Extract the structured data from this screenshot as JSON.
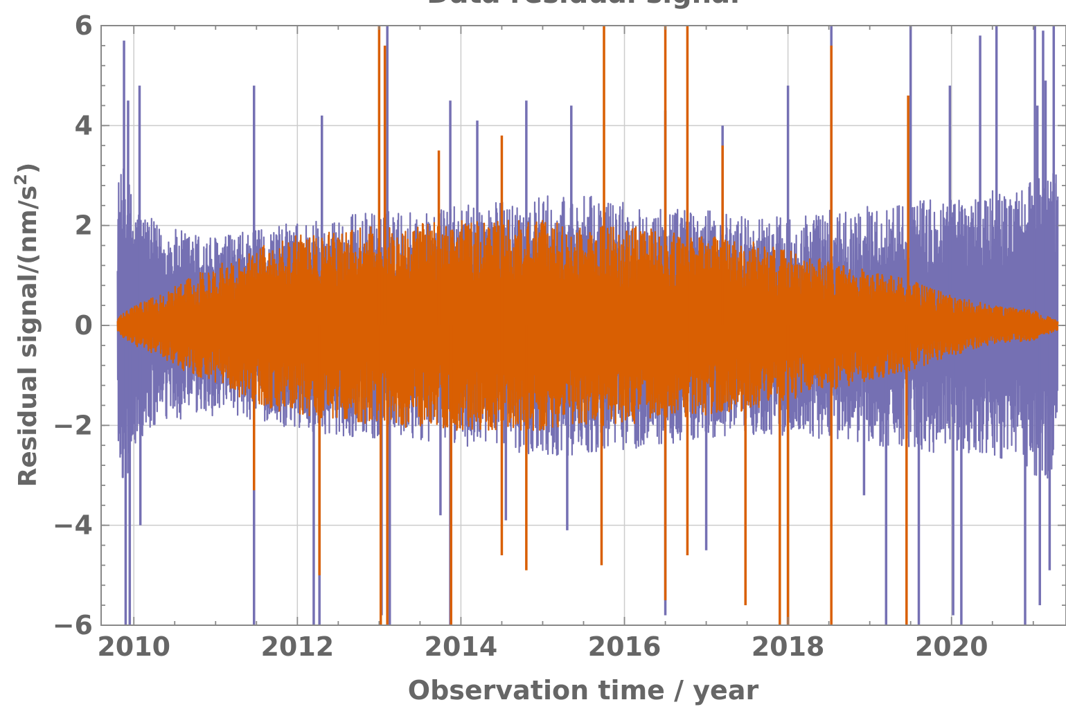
{
  "chart_data": {
    "type": "line",
    "title": "Data residual signal",
    "xlabel": "Observation time / year",
    "ylabel": "Residual signal/(nm/s",
    "ylabel_sup": "2",
    "ylabel_close": ")",
    "xlim": [
      2009.6,
      2021.4
    ],
    "ylim": [
      -6,
      6
    ],
    "x_ticks": [
      2010,
      2012,
      2014,
      2016,
      2018,
      2020
    ],
    "x_tick_labels": [
      "2010",
      "2012",
      "2014",
      "2016",
      "2018",
      "2020"
    ],
    "y_ticks": [
      -6,
      -4,
      -2,
      0,
      2,
      4,
      6
    ],
    "y_tick_labels": [
      "−6",
      "−4",
      "−2",
      "0",
      "2",
      "4",
      "6"
    ],
    "grid": true,
    "x_start": 2009.8,
    "x_end": 2021.3,
    "series": [
      {
        "color": "#7570b3",
        "envelope_x": [
          2009.8,
          2009.9,
          2010.0,
          2010.3,
          2010.6,
          2011.0,
          2011.5,
          2012.0,
          2012.5,
          2013.0,
          2013.5,
          2014.0,
          2014.5,
          2015.0,
          2015.5,
          2016.0,
          2016.5,
          2017.0,
          2017.5,
          2018.0,
          2018.5,
          2019.0,
          2019.5,
          2020.0,
          2020.5,
          2020.9,
          2021.1,
          2021.3
        ],
        "envelope_y": [
          3.0,
          3.2,
          2.5,
          2.0,
          1.9,
          1.8,
          1.9,
          2.1,
          2.2,
          2.3,
          2.3,
          2.4,
          2.5,
          2.6,
          2.6,
          2.5,
          2.4,
          2.3,
          2.2,
          2.2,
          2.3,
          2.4,
          2.5,
          2.6,
          2.7,
          2.8,
          3.2,
          3.0
        ],
        "spikes": [
          [
            2009.88,
            5.7
          ],
          [
            2009.9,
            -6.2
          ],
          [
            2009.93,
            4.5
          ],
          [
            2009.95,
            -6.0
          ],
          [
            2010.07,
            4.8
          ],
          [
            2010.08,
            -4.0
          ],
          [
            2011.47,
            4.8
          ],
          [
            2011.47,
            -6.2
          ],
          [
            2012.2,
            -6.0
          ],
          [
            2012.27,
            -6.1
          ],
          [
            2012.3,
            4.2
          ],
          [
            2013.03,
            -5.8
          ],
          [
            2013.1,
            6.1
          ],
          [
            2013.13,
            -6.0
          ],
          [
            2013.75,
            -3.8
          ],
          [
            2013.87,
            4.5
          ],
          [
            2013.87,
            -6.0
          ],
          [
            2014.2,
            4.1
          ],
          [
            2014.55,
            -3.9
          ],
          [
            2014.8,
            4.5
          ],
          [
            2015.3,
            -4.1
          ],
          [
            2015.35,
            4.4
          ],
          [
            2016.5,
            4.3
          ],
          [
            2016.5,
            -5.8
          ],
          [
            2017.0,
            -4.5
          ],
          [
            2017.2,
            4.0
          ],
          [
            2018.0,
            4.8
          ],
          [
            2018.0,
            -6.1
          ],
          [
            2018.53,
            6.1
          ],
          [
            2018.93,
            -3.4
          ],
          [
            2019.2,
            -6.0
          ],
          [
            2019.5,
            6.2
          ],
          [
            2019.6,
            -6.0
          ],
          [
            2019.98,
            4.8
          ],
          [
            2020.02,
            -5.8
          ],
          [
            2020.12,
            -6.0
          ],
          [
            2020.35,
            5.8
          ],
          [
            2020.55,
            6.1
          ],
          [
            2020.9,
            -6.0
          ],
          [
            2021.02,
            6.0
          ],
          [
            2021.05,
            4.4
          ],
          [
            2021.08,
            -5.6
          ],
          [
            2021.12,
            5.9
          ],
          [
            2021.15,
            4.9
          ],
          [
            2021.2,
            -4.9
          ],
          [
            2021.25,
            6.0
          ]
        ]
      },
      {
        "color": "#d95f02",
        "envelope_x": [
          2009.8,
          2010.0,
          2010.3,
          2010.6,
          2011.0,
          2011.5,
          2012.0,
          2012.5,
          2013.0,
          2013.5,
          2014.0,
          2014.5,
          2015.0,
          2015.5,
          2016.0,
          2016.5,
          2017.0,
          2017.5,
          2018.0,
          2018.5,
          2019.0,
          2019.5,
          2020.0,
          2020.5,
          2021.0,
          2021.3
        ],
        "envelope_y": [
          0.15,
          0.4,
          0.6,
          0.9,
          1.2,
          1.6,
          1.8,
          1.9,
          2.0,
          2.1,
          2.1,
          2.1,
          2.1,
          2.0,
          2.0,
          1.9,
          1.8,
          1.7,
          1.5,
          1.3,
          1.1,
          0.9,
          0.6,
          0.4,
          0.3,
          0.1
        ],
        "spikes": [
          [
            2011.47,
            -3.3
          ],
          [
            2012.27,
            -5.0
          ],
          [
            2013.0,
            6.1
          ],
          [
            2013.02,
            -6.0
          ],
          [
            2013.07,
            5.6
          ],
          [
            2013.1,
            -6.0
          ],
          [
            2013.73,
            3.5
          ],
          [
            2013.88,
            -6.2
          ],
          [
            2014.5,
            -4.6
          ],
          [
            2014.5,
            3.8
          ],
          [
            2014.8,
            -4.9
          ],
          [
            2015.72,
            -4.8
          ],
          [
            2015.75,
            6.0
          ],
          [
            2016.5,
            6.0
          ],
          [
            2016.5,
            -5.5
          ],
          [
            2016.77,
            6.0
          ],
          [
            2016.77,
            -4.6
          ],
          [
            2017.2,
            3.6
          ],
          [
            2017.48,
            -5.6
          ],
          [
            2017.9,
            -6.1
          ],
          [
            2018.0,
            -6.0
          ],
          [
            2018.53,
            5.6
          ],
          [
            2018.53,
            -6.1
          ],
          [
            2019.45,
            -6.1
          ],
          [
            2019.47,
            4.6
          ]
        ]
      }
    ]
  }
}
